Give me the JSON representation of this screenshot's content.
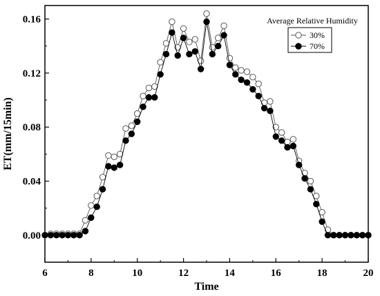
{
  "chart_data": {
    "type": "line",
    "xlabel": "Time",
    "ylabel": "ET(mm/15min)",
    "xlim": [
      6,
      20
    ],
    "ylim": [
      -0.02,
      0.17
    ],
    "x_ticks": [
      "6",
      "8",
      "10",
      "12",
      "14",
      "16",
      "18",
      "20"
    ],
    "y_ticks": [
      "0.00",
      "0.04",
      "0.08",
      "0.12",
      "0.16"
    ],
    "grid": false,
    "legend": {
      "title": "Average Relative Humidity",
      "position": "top-right"
    },
    "series": [
      {
        "name": "30%",
        "marker": "open-circle",
        "color": "#555555",
        "points": [
          [
            6.25,
            0.001
          ],
          [
            6.5,
            0.001
          ],
          [
            6.75,
            0.001
          ],
          [
            7.0,
            0.001
          ],
          [
            7.25,
            0.001
          ],
          [
            7.5,
            0.001
          ],
          [
            7.75,
            0.011
          ],
          [
            8.0,
            0.022
          ],
          [
            8.25,
            0.029
          ],
          [
            8.5,
            0.043
          ],
          [
            8.75,
            0.059
          ],
          [
            9.0,
            0.058
          ],
          [
            9.25,
            0.06
          ],
          [
            9.5,
            0.079
          ],
          [
            9.75,
            0.081
          ],
          [
            10.0,
            0.09
          ],
          [
            10.25,
            0.103
          ],
          [
            10.5,
            0.109
          ],
          [
            10.75,
            0.11
          ],
          [
            11.0,
            0.128
          ],
          [
            11.25,
            0.142
          ],
          [
            11.5,
            0.158
          ],
          [
            11.75,
            0.139
          ],
          [
            12.0,
            0.153
          ],
          [
            12.25,
            0.143
          ],
          [
            12.5,
            0.145
          ],
          [
            12.75,
            0.129
          ],
          [
            13.0,
            0.164
          ],
          [
            13.25,
            0.139
          ],
          [
            13.5,
            0.146
          ],
          [
            13.75,
            0.155
          ],
          [
            14.0,
            0.131
          ],
          [
            14.25,
            0.124
          ],
          [
            14.5,
            0.122
          ],
          [
            14.75,
            0.121
          ],
          [
            15.0,
            0.117
          ],
          [
            15.25,
            0.112
          ],
          [
            15.5,
            0.098
          ],
          [
            15.75,
            0.099
          ],
          [
            16.0,
            0.08
          ],
          [
            16.25,
            0.076
          ],
          [
            16.5,
            0.069
          ],
          [
            16.75,
            0.071
          ],
          [
            17.0,
            0.055
          ],
          [
            17.25,
            0.046
          ],
          [
            17.5,
            0.04
          ],
          [
            17.75,
            0.029
          ],
          [
            18.0,
            0.017
          ],
          [
            18.25,
            0.004
          ],
          [
            18.5,
            0.0
          ],
          [
            18.75,
            0.0
          ],
          [
            19.0,
            0.0
          ],
          [
            19.25,
            0.0
          ],
          [
            19.5,
            0.0
          ],
          [
            19.75,
            0.0
          ],
          [
            20.0,
            0.0
          ]
        ]
      },
      {
        "name": "70%",
        "marker": "filled-circle",
        "color": "#000000",
        "points": [
          [
            6.0,
            0.0
          ],
          [
            6.25,
            0.0
          ],
          [
            6.5,
            0.0
          ],
          [
            6.75,
            0.0
          ],
          [
            7.0,
            0.0
          ],
          [
            7.25,
            0.0
          ],
          [
            7.5,
            0.0
          ],
          [
            7.75,
            0.003
          ],
          [
            8.0,
            0.013
          ],
          [
            8.25,
            0.021
          ],
          [
            8.5,
            0.034
          ],
          [
            8.75,
            0.051
          ],
          [
            9.0,
            0.05
          ],
          [
            9.25,
            0.052
          ],
          [
            9.5,
            0.07
          ],
          [
            9.75,
            0.075
          ],
          [
            10.0,
            0.084
          ],
          [
            10.25,
            0.095
          ],
          [
            10.5,
            0.102
          ],
          [
            10.75,
            0.102
          ],
          [
            11.0,
            0.119
          ],
          [
            11.25,
            0.134
          ],
          [
            11.5,
            0.15
          ],
          [
            11.75,
            0.133
          ],
          [
            12.0,
            0.146
          ],
          [
            12.25,
            0.134
          ],
          [
            12.5,
            0.136
          ],
          [
            12.75,
            0.123
          ],
          [
            13.0,
            0.158
          ],
          [
            13.25,
            0.134
          ],
          [
            13.5,
            0.14
          ],
          [
            13.75,
            0.148
          ],
          [
            14.0,
            0.126
          ],
          [
            14.25,
            0.119
          ],
          [
            14.5,
            0.115
          ],
          [
            14.75,
            0.113
          ],
          [
            15.0,
            0.108
          ],
          [
            15.25,
            0.103
          ],
          [
            15.5,
            0.094
          ],
          [
            15.75,
            0.092
          ],
          [
            16.0,
            0.073
          ],
          [
            16.25,
            0.07
          ],
          [
            16.5,
            0.065
          ],
          [
            16.75,
            0.066
          ],
          [
            17.0,
            0.052
          ],
          [
            17.25,
            0.042
          ],
          [
            17.5,
            0.034
          ],
          [
            17.75,
            0.023
          ],
          [
            18.0,
            0.01
          ],
          [
            18.25,
            0.0
          ],
          [
            18.5,
            0.0
          ],
          [
            18.75,
            0.0
          ],
          [
            19.0,
            0.0
          ],
          [
            19.25,
            0.0
          ],
          [
            19.5,
            0.0
          ],
          [
            19.75,
            0.0
          ],
          [
            20.0,
            0.0
          ]
        ]
      }
    ]
  }
}
